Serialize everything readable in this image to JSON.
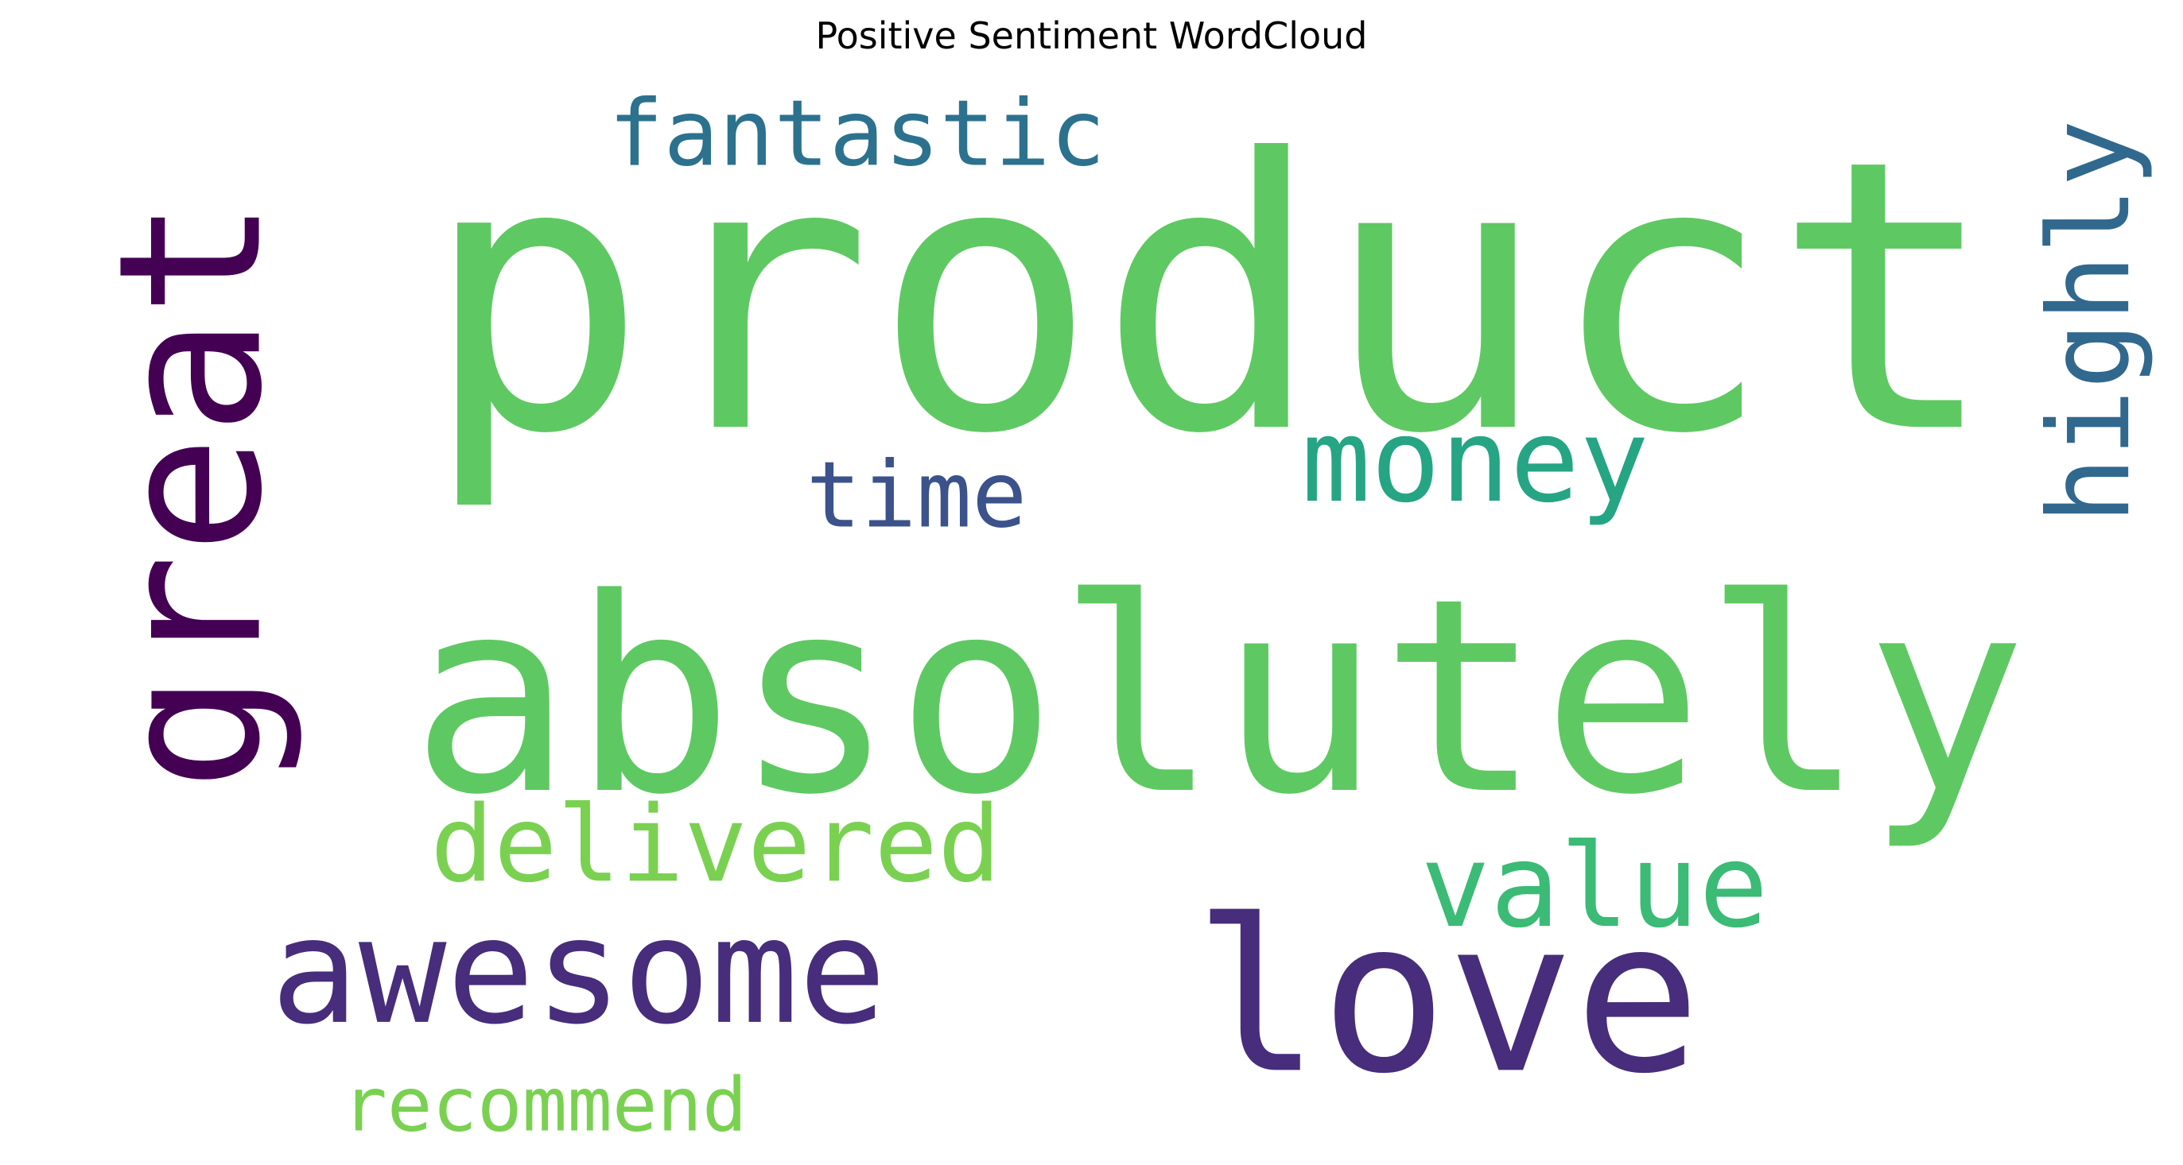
{
  "chart_data": {
    "type": "wordcloud",
    "title": "Positive Sentiment WordCloud",
    "words": [
      {
        "text": "product",
        "color": "#5ec962",
        "orientation": "horizontal"
      },
      {
        "text": "absolutely",
        "color": "#5ec962",
        "orientation": "horizontal"
      },
      {
        "text": "love",
        "color": "#472d7b",
        "orientation": "horizontal"
      },
      {
        "text": "awesome",
        "color": "#472d7b",
        "orientation": "horizontal"
      },
      {
        "text": "great",
        "color": "#440154",
        "orientation": "vertical"
      },
      {
        "text": "value",
        "color": "#3bbb75",
        "orientation": "horizontal"
      },
      {
        "text": "money",
        "color": "#25a584",
        "orientation": "horizontal"
      },
      {
        "text": "fantastic",
        "color": "#2c728e",
        "orientation": "horizontal"
      },
      {
        "text": "time",
        "color": "#3b528b",
        "orientation": "horizontal"
      },
      {
        "text": "highly",
        "color": "#31688e",
        "orientation": "vertical"
      },
      {
        "text": "delivered",
        "color": "#7ad151",
        "orientation": "horizontal"
      },
      {
        "text": "recommend",
        "color": "#7ad151",
        "orientation": "horizontal"
      }
    ]
  }
}
